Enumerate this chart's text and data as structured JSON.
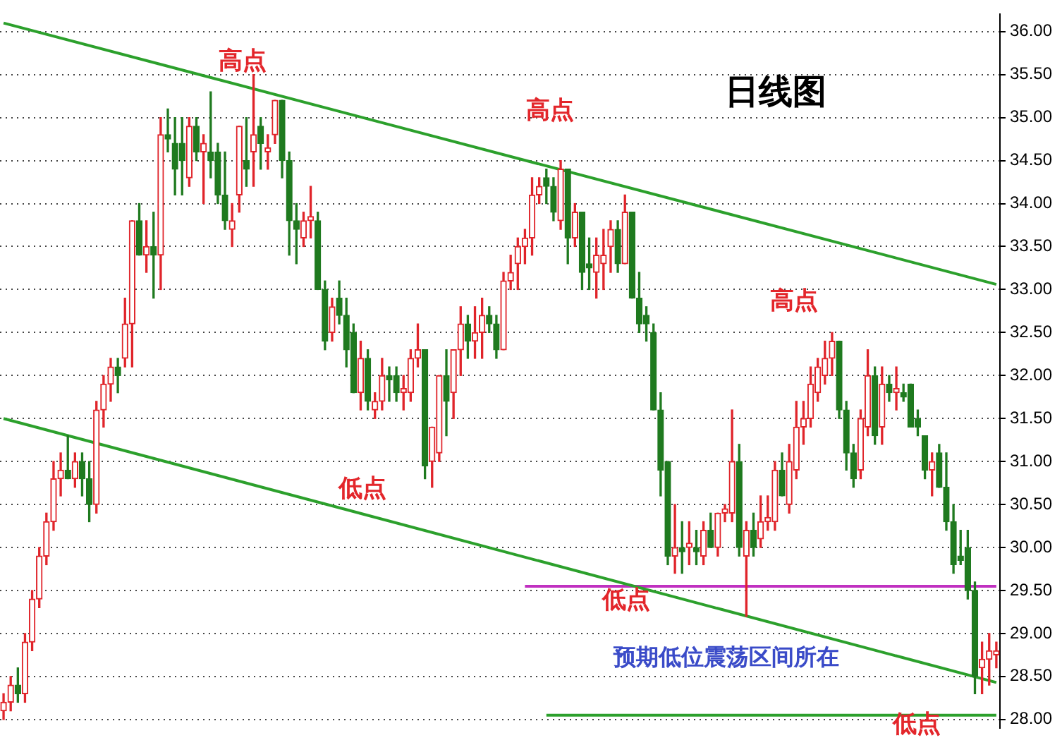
{
  "chart_data": {
    "type": "candlestick",
    "title": "日线图",
    "categories": [
      null,
      null,
      null,
      null,
      null,
      null,
      null,
      null,
      null,
      null,
      null,
      null,
      null,
      null,
      null,
      null,
      null,
      null,
      null,
      null,
      null,
      null,
      null,
      null,
      null,
      null,
      null,
      null,
      null,
      null,
      null,
      null,
      null,
      null,
      null,
      null,
      null,
      null,
      null,
      null,
      null,
      null,
      null,
      null,
      null,
      null,
      null,
      null,
      null,
      null,
      null,
      null,
      null,
      null,
      null,
      null,
      null,
      null,
      null,
      null,
      null,
      null,
      null,
      null,
      null,
      null,
      null,
      null,
      null,
      null,
      null,
      null,
      null,
      null,
      null,
      null,
      null,
      null,
      null,
      null,
      null,
      null,
      null,
      null,
      null,
      null,
      null,
      null,
      null,
      null,
      null,
      null,
      null,
      null,
      null,
      null,
      null,
      null,
      null,
      null,
      null,
      null,
      null,
      null,
      null,
      null,
      null,
      null,
      null,
      null,
      null,
      null,
      null,
      null,
      null,
      null,
      null,
      null,
      null,
      null,
      null,
      null,
      null,
      null,
      null,
      null,
      null,
      null,
      null,
      null,
      null,
      null,
      null,
      null,
      null,
      null,
      null,
      null,
      null,
      null
    ],
    "ohlc": [
      [
        28.1,
        28.3,
        28.0,
        28.2
      ],
      [
        28.2,
        28.5,
        28.1,
        28.4
      ],
      [
        28.4,
        28.6,
        28.2,
        28.3
      ],
      [
        28.3,
        29.0,
        28.2,
        28.9
      ],
      [
        28.9,
        29.5,
        28.8,
        29.4
      ],
      [
        29.4,
        30.0,
        29.3,
        29.9
      ],
      [
        29.9,
        30.4,
        29.8,
        30.3
      ],
      [
        30.3,
        31.0,
        30.2,
        30.8
      ],
      [
        30.8,
        31.1,
        30.6,
        30.9
      ],
      [
        30.9,
        31.3,
        30.8,
        30.8
      ],
      [
        30.8,
        31.1,
        30.7,
        31.0
      ],
      [
        31.0,
        31.1,
        30.6,
        30.8
      ],
      [
        30.8,
        31.0,
        30.3,
        30.5
      ],
      [
        30.5,
        31.7,
        30.4,
        31.6
      ],
      [
        31.6,
        32.0,
        31.4,
        31.9
      ],
      [
        31.9,
        32.2,
        31.7,
        32.1
      ],
      [
        32.1,
        32.2,
        31.8,
        32.0
      ],
      [
        32.2,
        32.9,
        32.1,
        32.6
      ],
      [
        32.6,
        33.8,
        32.1,
        33.8
      ],
      [
        33.8,
        34.0,
        33.4,
        33.4
      ],
      [
        33.4,
        33.8,
        33.2,
        33.5
      ],
      [
        33.5,
        33.9,
        32.9,
        33.4
      ],
      [
        33.4,
        35.0,
        33.0,
        34.8
      ],
      [
        34.8,
        35.1,
        34.6,
        34.75
      ],
      [
        34.7,
        35.0,
        34.1,
        34.4
      ],
      [
        34.7,
        35.0,
        34.1,
        34.5
      ],
      [
        34.3,
        35.0,
        34.2,
        34.9
      ],
      [
        34.9,
        35.0,
        34.5,
        34.6
      ],
      [
        34.6,
        34.8,
        34.0,
        34.7
      ],
      [
        34.6,
        35.3,
        34.3,
        34.5
      ],
      [
        34.6,
        34.7,
        34.0,
        34.1
      ],
      [
        34.1,
        34.6,
        33.7,
        33.8
      ],
      [
        33.7,
        34.0,
        33.5,
        33.8
      ],
      [
        34.1,
        34.9,
        33.9,
        34.9
      ],
      [
        34.5,
        35.0,
        34.2,
        34.4
      ],
      [
        34.6,
        35.5,
        34.2,
        34.8
      ],
      [
        34.9,
        35.0,
        34.4,
        34.7
      ],
      [
        34.6,
        34.8,
        34.4,
        34.65
      ],
      [
        34.8,
        35.2,
        34.7,
        35.2
      ],
      [
        35.2,
        35.2,
        34.3,
        34.5
      ],
      [
        34.5,
        34.6,
        33.4,
        33.8
      ],
      [
        33.8,
        34.0,
        33.3,
        33.7
      ],
      [
        33.6,
        33.9,
        33.5,
        33.8
      ],
      [
        33.8,
        34.2,
        33.6,
        33.85
      ],
      [
        33.8,
        33.9,
        33.0,
        33.0
      ],
      [
        33.0,
        33.1,
        32.3,
        32.4
      ],
      [
        32.5,
        32.9,
        32.4,
        32.8
      ],
      [
        32.9,
        33.1,
        32.6,
        32.7
      ],
      [
        32.7,
        32.9,
        32.1,
        32.3
      ],
      [
        32.5,
        32.6,
        31.8,
        31.8
      ],
      [
        31.8,
        32.4,
        31.6,
        32.2
      ],
      [
        32.2,
        32.3,
        31.6,
        31.7
      ],
      [
        31.6,
        31.8,
        31.5,
        31.7
      ],
      [
        31.7,
        32.2,
        31.6,
        32.0
      ],
      [
        32.0,
        32.1,
        31.7,
        31.95
      ],
      [
        32.0,
        32.1,
        31.7,
        31.8
      ],
      [
        31.8,
        32.0,
        31.6,
        31.85
      ],
      [
        31.8,
        32.3,
        31.7,
        32.2
      ],
      [
        32.2,
        32.6,
        32.1,
        32.3
      ],
      [
        32.3,
        32.3,
        30.8,
        30.95
      ],
      [
        31.0,
        31.4,
        30.7,
        31.4
      ],
      [
        31.1,
        32.0,
        31.0,
        32.0
      ],
      [
        32.0,
        32.3,
        31.3,
        31.7
      ],
      [
        31.8,
        32.3,
        31.5,
        32.3
      ],
      [
        32.3,
        32.8,
        32.0,
        32.6
      ],
      [
        32.6,
        32.7,
        32.2,
        32.4
      ],
      [
        32.4,
        32.8,
        32.2,
        32.5
      ],
      [
        32.5,
        32.9,
        32.2,
        32.7
      ],
      [
        32.7,
        32.8,
        32.5,
        32.6
      ],
      [
        32.6,
        32.7,
        32.2,
        32.3
      ],
      [
        32.3,
        33.2,
        32.3,
        33.1
      ],
      [
        33.1,
        33.4,
        33.0,
        33.2
      ],
      [
        33.3,
        33.6,
        33.0,
        33.5
      ],
      [
        33.5,
        33.7,
        33.3,
        33.6
      ],
      [
        33.6,
        34.3,
        33.4,
        34.1
      ],
      [
        34.1,
        34.3,
        34.0,
        34.2
      ],
      [
        34.3,
        34.4,
        34.0,
        34.2
      ],
      [
        34.2,
        34.3,
        33.8,
        33.9
      ],
      [
        33.8,
        34.5,
        33.7,
        34.4
      ],
      [
        34.4,
        34.4,
        33.3,
        33.6
      ],
      [
        33.6,
        34.0,
        33.5,
        33.9
      ],
      [
        33.9,
        33.9,
        33.0,
        33.2
      ],
      [
        33.3,
        33.6,
        33.0,
        33.25
      ],
      [
        33.2,
        33.6,
        32.9,
        33.4
      ],
      [
        33.3,
        33.7,
        33.0,
        33.4
      ],
      [
        33.5,
        33.8,
        33.2,
        33.7
      ],
      [
        33.7,
        33.8,
        33.2,
        33.3
      ],
      [
        33.3,
        34.1,
        33.3,
        33.9
      ],
      [
        33.9,
        33.9,
        32.9,
        32.9
      ],
      [
        32.9,
        33.2,
        32.5,
        32.6
      ],
      [
        32.7,
        32.8,
        32.4,
        32.6
      ],
      [
        32.5,
        32.6,
        31.6,
        31.6
      ],
      [
        31.6,
        31.8,
        30.6,
        30.9
      ],
      [
        31.0,
        31.0,
        29.8,
        29.9
      ],
      [
        29.9,
        30.5,
        29.7,
        30.0
      ],
      [
        30.0,
        30.3,
        29.7,
        29.95
      ],
      [
        30.0,
        30.3,
        29.8,
        30.05
      ],
      [
        30.0,
        30.2,
        29.8,
        29.95
      ],
      [
        29.9,
        30.3,
        29.8,
        30.2
      ],
      [
        30.2,
        30.4,
        30.0,
        30.0
      ],
      [
        30.0,
        30.4,
        29.9,
        30.4
      ],
      [
        30.4,
        30.5,
        30.3,
        30.45
      ],
      [
        30.4,
        31.6,
        30.3,
        31.0
      ],
      [
        31.0,
        31.2,
        29.9,
        30.0
      ],
      [
        29.9,
        30.3,
        29.2,
        30.2
      ],
      [
        30.2,
        30.4,
        29.9,
        30.0
      ],
      [
        30.1,
        30.6,
        30.0,
        30.3
      ],
      [
        30.3,
        30.6,
        30.2,
        30.35
      ],
      [
        30.3,
        31.0,
        30.2,
        30.9
      ],
      [
        30.9,
        31.1,
        30.6,
        30.6
      ],
      [
        30.5,
        31.2,
        30.4,
        31.0
      ],
      [
        30.9,
        31.7,
        30.8,
        31.4
      ],
      [
        31.4,
        31.7,
        31.2,
        31.5
      ],
      [
        31.5,
        32.1,
        31.4,
        31.9
      ],
      [
        31.8,
        32.2,
        31.7,
        32.1
      ],
      [
        32.0,
        32.4,
        31.9,
        32.2
      ],
      [
        32.2,
        32.5,
        32.0,
        32.4
      ],
      [
        32.4,
        32.4,
        31.5,
        31.6
      ],
      [
        31.6,
        31.7,
        30.9,
        31.1
      ],
      [
        31.1,
        31.2,
        30.7,
        30.8
      ],
      [
        30.9,
        31.6,
        30.8,
        31.5
      ],
      [
        31.4,
        32.3,
        31.3,
        32.0
      ],
      [
        32.0,
        32.1,
        31.2,
        31.3
      ],
      [
        31.4,
        32.1,
        31.2,
        31.9
      ],
      [
        31.9,
        32.0,
        31.7,
        31.8
      ],
      [
        31.8,
        32.1,
        31.6,
        31.85
      ],
      [
        31.8,
        31.9,
        31.7,
        31.75
      ],
      [
        31.9,
        31.9,
        31.4,
        31.4
      ],
      [
        31.5,
        31.6,
        31.3,
        31.4
      ],
      [
        31.3,
        31.3,
        30.8,
        30.9
      ],
      [
        30.9,
        31.1,
        30.6,
        31.0
      ],
      [
        31.1,
        31.2,
        30.7,
        30.7
      ],
      [
        30.7,
        31.1,
        30.2,
        30.3
      ],
      [
        30.3,
        30.5,
        29.7,
        29.8
      ],
      [
        29.9,
        30.2,
        29.8,
        29.85
      ],
      [
        30.0,
        30.2,
        29.4,
        29.5
      ],
      [
        29.5,
        29.6,
        28.3,
        28.5
      ],
      [
        28.6,
        28.9,
        28.3,
        28.7
      ],
      [
        28.7,
        29.0,
        28.4,
        28.8
      ],
      [
        28.75,
        28.9,
        28.6,
        28.8
      ]
    ],
    "series": [
      {
        "type": "line",
        "color": "#2ca02c",
        "values": [
          36.1,
          null,
          null,
          null,
          null,
          null,
          null,
          null,
          null,
          null,
          null,
          null,
          null,
          null,
          null,
          null,
          null,
          null,
          null,
          null,
          null,
          null,
          null,
          null,
          null,
          null,
          null,
          null,
          null,
          null,
          null,
          null,
          null,
          null,
          null,
          null,
          null,
          null,
          null,
          null,
          null,
          null,
          null,
          null,
          null,
          null,
          null,
          null,
          null,
          null,
          null,
          null,
          null,
          null,
          null,
          null,
          null,
          null,
          null,
          null,
          null,
          null,
          null,
          null,
          null,
          null,
          null,
          null,
          null,
          null,
          null,
          null,
          null,
          null,
          null,
          null,
          null,
          null,
          null,
          null,
          null,
          null,
          null,
          null,
          null,
          null,
          null,
          null,
          null,
          null,
          null,
          null,
          null,
          null,
          null,
          null,
          null,
          null,
          null,
          null,
          null,
          null,
          null,
          null,
          null,
          null,
          null,
          null,
          null,
          null,
          null,
          null,
          null,
          null,
          null,
          null,
          null,
          null,
          null,
          null,
          null,
          null,
          null,
          null,
          null,
          null,
          null,
          null,
          null,
          null,
          null,
          null,
          null,
          null,
          null,
          null,
          null,
          null,
          null,
          33.06
        ]
      },
      {
        "type": "line",
        "color": "#2ca02c",
        "values": [
          31.5,
          null,
          null,
          null,
          null,
          null,
          null,
          null,
          null,
          null,
          null,
          null,
          null,
          null,
          null,
          null,
          null,
          null,
          null,
          null,
          null,
          null,
          null,
          null,
          null,
          null,
          null,
          null,
          null,
          null,
          null,
          null,
          null,
          null,
          null,
          null,
          null,
          null,
          null,
          null,
          null,
          null,
          null,
          null,
          null,
          null,
          null,
          null,
          null,
          null,
          null,
          null,
          null,
          null,
          null,
          null,
          null,
          null,
          null,
          null,
          null,
          null,
          null,
          null,
          null,
          null,
          null,
          null,
          null,
          null,
          null,
          null,
          null,
          null,
          null,
          null,
          null,
          null,
          null,
          null,
          null,
          null,
          null,
          null,
          null,
          null,
          null,
          null,
          null,
          null,
          null,
          null,
          null,
          null,
          null,
          null,
          null,
          null,
          null,
          null,
          null,
          null,
          null,
          null,
          null,
          null,
          null,
          null,
          null,
          null,
          null,
          null,
          null,
          null,
          null,
          null,
          null,
          null,
          null,
          null,
          null,
          null,
          null,
          null,
          null,
          null,
          null,
          null,
          null,
          null,
          null,
          null,
          null,
          null,
          null,
          null,
          null,
          null,
          null,
          28.43
        ]
      },
      {
        "type": "line",
        "color": "#c030c0",
        "values": [
          null,
          null,
          null,
          null,
          null,
          null,
          null,
          null,
          null,
          null,
          null,
          null,
          null,
          null,
          null,
          null,
          null,
          null,
          null,
          null,
          null,
          null,
          null,
          null,
          null,
          null,
          null,
          null,
          null,
          null,
          null,
          null,
          null,
          null,
          null,
          null,
          null,
          null,
          null,
          null,
          null,
          null,
          null,
          null,
          null,
          null,
          null,
          null,
          null,
          null,
          null,
          null,
          null,
          null,
          null,
          null,
          null,
          null,
          null,
          null,
          null,
          null,
          null,
          null,
          null,
          null,
          null,
          null,
          null,
          null,
          null,
          null,
          null,
          29.55,
          null,
          null,
          null,
          null,
          null,
          null,
          null,
          null,
          null,
          null,
          null,
          null,
          null,
          null,
          null,
          null,
          null,
          null,
          null,
          null,
          null,
          null,
          null,
          null,
          null,
          null,
          null,
          null,
          null,
          null,
          null,
          null,
          null,
          null,
          null,
          null,
          null,
          null,
          null,
          null,
          null,
          null,
          null,
          null,
          null,
          null,
          null,
          null,
          null,
          null,
          null,
          null,
          null,
          null,
          null,
          null,
          null,
          null,
          null,
          null,
          null,
          null,
          null,
          null,
          null,
          29.55
        ]
      },
      {
        "type": "line",
        "color": "#2ca02c",
        "values": [
          null,
          null,
          null,
          null,
          null,
          null,
          null,
          null,
          null,
          null,
          null,
          null,
          null,
          null,
          null,
          null,
          null,
          null,
          null,
          null,
          null,
          null,
          null,
          null,
          null,
          null,
          null,
          null,
          null,
          null,
          null,
          null,
          null,
          null,
          null,
          null,
          null,
          null,
          null,
          null,
          null,
          null,
          null,
          null,
          null,
          null,
          null,
          null,
          null,
          null,
          null,
          null,
          null,
          null,
          null,
          null,
          null,
          null,
          null,
          null,
          null,
          null,
          null,
          null,
          null,
          null,
          null,
          null,
          null,
          null,
          null,
          null,
          null,
          null,
          null,
          null,
          28.05,
          null,
          null,
          null,
          null,
          null,
          null,
          null,
          null,
          null,
          null,
          null,
          null,
          null,
          null,
          null,
          null,
          null,
          null,
          null,
          null,
          null,
          null,
          null,
          null,
          null,
          null,
          null,
          null,
          null,
          null,
          null,
          null,
          null,
          null,
          null,
          null,
          null,
          null,
          null,
          null,
          null,
          null,
          null,
          null,
          null,
          null,
          null,
          null,
          null,
          null,
          null,
          null,
          null,
          null,
          null,
          null,
          null,
          null,
          null,
          null,
          null,
          null,
          28.05
        ]
      }
    ],
    "ylim": [
      27.9,
      36.2
    ],
    "yticks": [
      {
        "value": 28,
        "label": "28.00"
      },
      {
        "value": 28.5,
        "label": "28.50"
      },
      {
        "value": 29,
        "label": "29.00"
      },
      {
        "value": 29.5,
        "label": "29.50"
      },
      {
        "value": 30,
        "label": "30.00"
      },
      {
        "value": 30.5,
        "label": "30.50"
      },
      {
        "value": 31,
        "label": "31.00"
      },
      {
        "value": 31.5,
        "label": "31.50"
      },
      {
        "value": 32,
        "label": "32.00"
      },
      {
        "value": 32.5,
        "label": "32.50"
      },
      {
        "value": 33,
        "label": "33.00"
      },
      {
        "value": 33.5,
        "label": "33.50"
      },
      {
        "value": 34,
        "label": "34.00"
      },
      {
        "value": 34.5,
        "label": "34.50"
      },
      {
        "value": 35,
        "label": "35.00"
      },
      {
        "value": 35.5,
        "label": "35.50"
      },
      {
        "value": 36,
        "label": "36.00"
      }
    ],
    "grid": "y",
    "tick_labels": "y",
    "annotations": [
      "高点",
      "高点",
      "高点",
      "低点",
      "低点",
      "预期低位震荡区间所在",
      "低点"
    ]
  }
}
